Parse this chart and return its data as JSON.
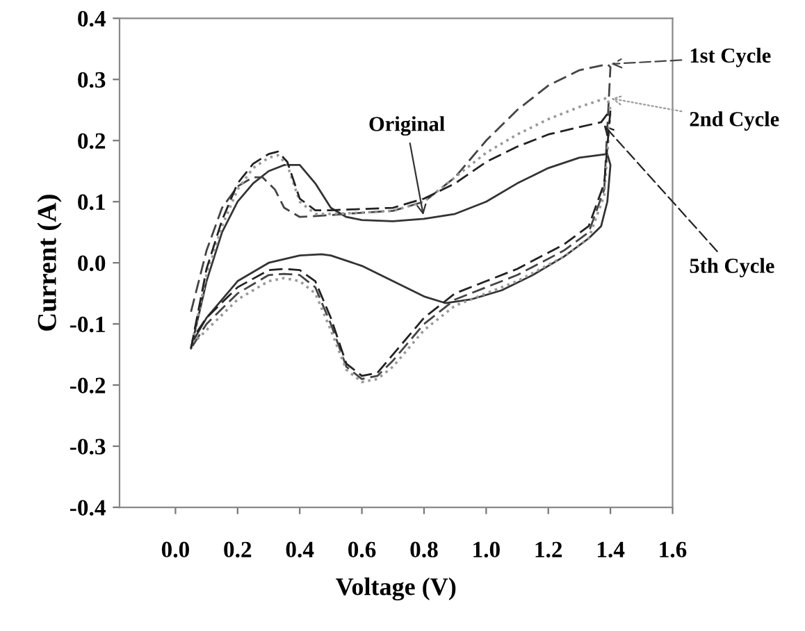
{
  "chart_data": {
    "type": "line",
    "xlabel": "Voltage (V)",
    "ylabel": "Current (A)",
    "xlim": [
      -0.18,
      1.6
    ],
    "xticks": [
      {
        "value": 0,
        "label": "0.0"
      },
      0.2,
      0.4,
      0.6,
      0.8,
      {
        "value": 1,
        "label": "1.0"
      },
      1.2,
      1.4,
      1.6
    ],
    "ylim": [
      -0.4,
      0.4
    ],
    "yticks": [
      -0.4,
      -0.3,
      -0.2,
      -0.1,
      {
        "value": 0,
        "label": "0.0"
      },
      0.1,
      0.2,
      0.3,
      0.4
    ],
    "grid": false,
    "legend": "right",
    "marker": "none",
    "series": [
      {
        "name": "Original",
        "color": "#333333",
        "line_style": "solid",
        "x": [
          0.05,
          0.1,
          0.15,
          0.2,
          0.25,
          0.3,
          0.35,
          0.4,
          0.45,
          0.5,
          0.55,
          0.6,
          0.7,
          0.8,
          0.9,
          1.0,
          1.1,
          1.2,
          1.3,
          1.39,
          1.4,
          1.39,
          1.37,
          1.33,
          1.25,
          1.15,
          1.05,
          0.95,
          0.87,
          0.8,
          0.7,
          0.6,
          0.5,
          0.47,
          0.4,
          0.3,
          0.2,
          0.1,
          0.06
        ],
        "values": [
          -0.14,
          -0.03,
          0.05,
          0.1,
          0.13,
          0.15,
          0.16,
          0.16,
          0.13,
          0.09,
          0.075,
          0.07,
          0.068,
          0.072,
          0.08,
          0.1,
          0.13,
          0.155,
          0.172,
          0.178,
          0.16,
          0.1,
          0.06,
          0.04,
          0.01,
          -0.02,
          -0.045,
          -0.06,
          -0.066,
          -0.055,
          -0.03,
          -0.005,
          0.012,
          0.014,
          0.012,
          0.0,
          -0.03,
          -0.09,
          -0.125
        ]
      },
      {
        "name": "1st Cycle",
        "color": "#444444",
        "line_style": "dashed",
        "x": [
          0.05,
          0.1,
          0.15,
          0.2,
          0.25,
          0.28,
          0.32,
          0.35,
          0.4,
          0.5,
          0.6,
          0.7,
          0.8,
          0.9,
          1.0,
          1.1,
          1.2,
          1.3,
          1.39,
          1.4,
          1.38,
          1.33,
          1.25,
          1.1,
          1.0,
          0.9,
          0.8,
          0.7,
          0.65,
          0.6,
          0.55,
          0.5,
          0.45,
          0.4,
          0.35,
          0.3,
          0.2,
          0.1,
          0.05
        ],
        "values": [
          -0.08,
          0.02,
          0.09,
          0.125,
          0.14,
          0.14,
          0.12,
          0.09,
          0.075,
          0.078,
          0.082,
          0.085,
          0.1,
          0.14,
          0.2,
          0.25,
          0.29,
          0.315,
          0.325,
          0.32,
          0.12,
          0.05,
          0.02,
          -0.02,
          -0.04,
          -0.06,
          -0.1,
          -0.16,
          -0.185,
          -0.19,
          -0.17,
          -0.1,
          -0.04,
          -0.02,
          -0.018,
          -0.02,
          -0.05,
          -0.1,
          -0.14
        ]
      },
      {
        "name": "2nd Cycle",
        "color": "#999999",
        "line_style": "dotted",
        "x": [
          0.05,
          0.1,
          0.15,
          0.2,
          0.25,
          0.3,
          0.33,
          0.36,
          0.4,
          0.45,
          0.5,
          0.6,
          0.7,
          0.8,
          0.9,
          1.0,
          1.1,
          1.2,
          1.3,
          1.39,
          1.4,
          1.38,
          1.33,
          1.25,
          1.1,
          1.0,
          0.9,
          0.8,
          0.7,
          0.65,
          0.6,
          0.55,
          0.5,
          0.45,
          0.4,
          0.35,
          0.3,
          0.2,
          0.1,
          0.06
        ],
        "values": [
          -0.14,
          -0.02,
          0.06,
          0.12,
          0.155,
          0.172,
          0.176,
          0.16,
          0.1,
          0.08,
          0.08,
          0.082,
          0.085,
          0.1,
          0.14,
          0.18,
          0.21,
          0.235,
          0.255,
          0.27,
          0.25,
          0.11,
          0.04,
          0.01,
          -0.03,
          -0.05,
          -0.07,
          -0.11,
          -0.17,
          -0.19,
          -0.195,
          -0.175,
          -0.11,
          -0.05,
          -0.03,
          -0.025,
          -0.03,
          -0.06,
          -0.11,
          -0.13
        ]
      },
      {
        "name": "5th Cycle",
        "color": "#222222",
        "line_style": "dashed",
        "x": [
          0.05,
          0.1,
          0.15,
          0.2,
          0.25,
          0.3,
          0.33,
          0.36,
          0.4,
          0.45,
          0.5,
          0.6,
          0.7,
          0.8,
          0.9,
          1.0,
          1.1,
          1.2,
          1.3,
          1.37,
          1.4,
          1.38,
          1.33,
          1.25,
          1.1,
          1.0,
          0.9,
          0.8,
          0.7,
          0.65,
          0.6,
          0.55,
          0.5,
          0.45,
          0.4,
          0.35,
          0.3,
          0.2,
          0.1,
          0.06
        ],
        "values": [
          -0.14,
          -0.01,
          0.07,
          0.13,
          0.162,
          0.178,
          0.182,
          0.165,
          0.105,
          0.086,
          0.086,
          0.088,
          0.09,
          0.105,
          0.13,
          0.165,
          0.19,
          0.21,
          0.222,
          0.23,
          0.25,
          0.13,
          0.06,
          0.03,
          -0.01,
          -0.03,
          -0.05,
          -0.09,
          -0.15,
          -0.18,
          -0.185,
          -0.165,
          -0.09,
          -0.03,
          -0.012,
          -0.01,
          -0.012,
          -0.04,
          -0.09,
          -0.12
        ]
      }
    ]
  }
}
